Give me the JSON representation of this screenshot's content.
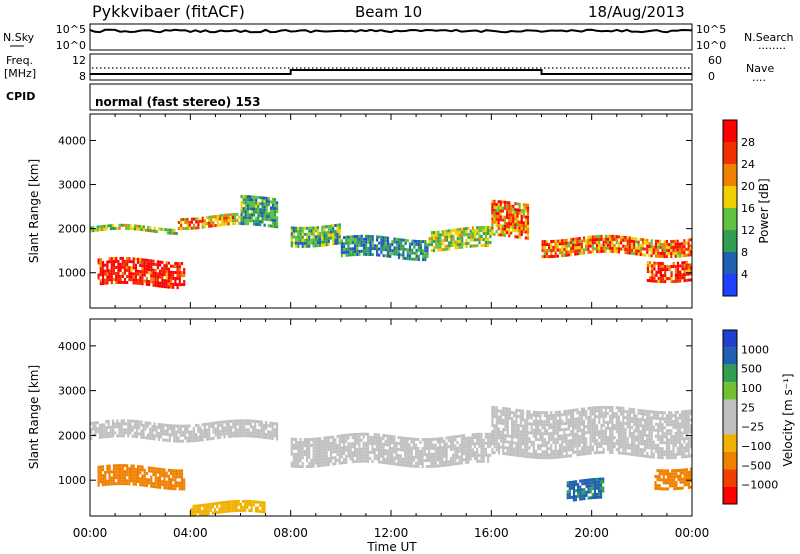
{
  "header": {
    "station": "Pykkvibaer (fitACF)",
    "beam": "Beam 10",
    "date": "18/Aug/2013"
  },
  "panels": {
    "nsky": {
      "label": "N.Sky",
      "ticks_left": [
        "10^5",
        "10^0"
      ],
      "ticks_right": [
        "10^5",
        "10^0"
      ],
      "right_label": "N.Search",
      "right_dots": "........"
    },
    "freq": {
      "label_line1": "Freq.",
      "label_line2": "[MHz]",
      "ticks_left": [
        "12",
        "8"
      ],
      "ticks_right": [
        "60",
        "0"
      ],
      "right_label": "Nave",
      "right_dots": "...."
    },
    "cpid": {
      "label": "CPID",
      "text": "normal (fast stereo) 153"
    }
  },
  "colors": {
    "power": [
      "#2040ff",
      "#2060b0",
      "#30a050",
      "#60c040",
      "#f0d000",
      "#f08000",
      "#f03000",
      "#ff0000"
    ],
    "velocity": [
      "#ff0000",
      "#f04000",
      "#f08000",
      "#f0b000",
      "#c0c0c0",
      "#c0c0c0",
      "#70c030",
      "#30a050",
      "#2060b0",
      "#2040d0"
    ]
  },
  "chart_data": [
    {
      "type": "heatmap",
      "name": "power",
      "xlabel": "",
      "ylabel": "Slant Range [km]",
      "x_ticks": [
        "00:00",
        "04:00",
        "08:00",
        "12:00",
        "16:00",
        "20:00",
        "00:00"
      ],
      "y_ticks": [
        1000,
        2000,
        3000,
        4000
      ],
      "ylim": [
        200,
        4600
      ],
      "xlim_hours": [
        0,
        24
      ],
      "colorbar": {
        "label": "Power [dB]",
        "ticks": [
          "28",
          "24",
          "20",
          "16",
          "12",
          "8",
          "4"
        ],
        "range": [
          0,
          30
        ]
      },
      "echo_bands": [
        {
          "start": 0.0,
          "end": 3.5,
          "r0": 1900,
          "r1": 2050,
          "v": 14
        },
        {
          "start": 3.5,
          "end": 6.0,
          "r0": 2000,
          "r1": 2300,
          "v": 20
        },
        {
          "start": 6.0,
          "end": 7.5,
          "r0": 2000,
          "r1": 2700,
          "v": 10
        },
        {
          "start": 8.0,
          "end": 10.0,
          "r0": 1600,
          "r1": 2100,
          "v": 12
        },
        {
          "start": 10.0,
          "end": 13.5,
          "r0": 1300,
          "r1": 1800,
          "v": 8
        },
        {
          "start": 13.5,
          "end": 16.0,
          "r0": 1500,
          "r1": 2000,
          "v": 14
        },
        {
          "start": 16.0,
          "end": 17.5,
          "r0": 1800,
          "r1": 2600,
          "v": 22
        },
        {
          "start": 18.0,
          "end": 24.0,
          "r0": 1400,
          "r1": 1800,
          "v": 22
        },
        {
          "start": 0.3,
          "end": 3.8,
          "r0": 700,
          "r1": 1300,
          "v": 28
        },
        {
          "start": 22.2,
          "end": 24.0,
          "r0": 800,
          "r1": 1300,
          "v": 26
        }
      ]
    },
    {
      "type": "heatmap",
      "name": "velocity",
      "xlabel": "Time UT",
      "ylabel": "Slant Range [km]",
      "x_ticks": [
        "00:00",
        "04:00",
        "08:00",
        "12:00",
        "16:00",
        "20:00",
        "00:00"
      ],
      "y_ticks": [
        1000,
        2000,
        3000,
        4000
      ],
      "ylim": [
        200,
        4600
      ],
      "xlim_hours": [
        0,
        24
      ],
      "colorbar": {
        "label": "Velocity [m s⁻¹]",
        "ticks": [
          "1000",
          "500",
          "100",
          "25",
          "−25",
          "−100",
          "−500",
          "−1000"
        ]
      },
      "echo_bands": [
        {
          "start": 0.0,
          "end": 7.5,
          "r0": 1900,
          "r1": 2300,
          "v": 0
        },
        {
          "start": 8.0,
          "end": 16.0,
          "r0": 1300,
          "r1": 2000,
          "v": 0
        },
        {
          "start": 16.0,
          "end": 24.0,
          "r0": 1500,
          "r1": 2600,
          "v": 0
        },
        {
          "start": 0.3,
          "end": 3.8,
          "r0": 800,
          "r1": 1300,
          "v": -300
        },
        {
          "start": 4.0,
          "end": 7.0,
          "r0": 200,
          "r1": 500,
          "v": -50
        },
        {
          "start": 19.0,
          "end": 20.5,
          "r0": 500,
          "r1": 1000,
          "v": 600
        },
        {
          "start": 22.5,
          "end": 24.0,
          "r0": 800,
          "r1": 1300,
          "v": -200
        }
      ]
    }
  ]
}
